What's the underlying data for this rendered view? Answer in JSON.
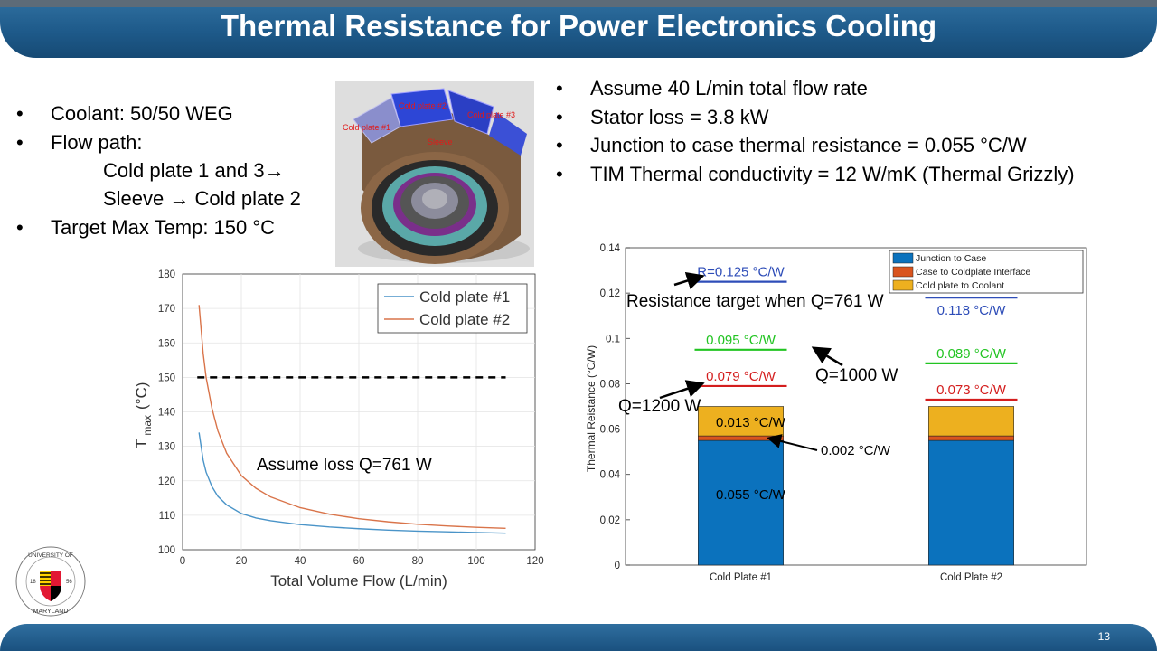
{
  "slide": {
    "title": "Thermal Resistance for Power Electronics Cooling",
    "number": "13"
  },
  "left_bullets": [
    "Coolant: 50/50 WEG",
    "Flow path:",
    "Target Max Temp: 150 °C"
  ],
  "flow_path_lines": [
    "Cold plate 1 and 3→",
    "Sleeve → Cold plate 2"
  ],
  "right_bullets": [
    "Assume 40 L/min total flow rate",
    "Stator loss = 3.8 kW",
    "Junction to case thermal resistance = 0.055 °C/W",
    "TIM Thermal conductivity = 12 W/mK (Thermal Grizzly)"
  ],
  "model_labels": [
    "Cold plate #1",
    "Cold plate #2",
    "Cold plate #3",
    "Sleeve"
  ],
  "logo": {
    "text_top": "UNIVERSITY OF",
    "text_bottom": "MARYLAND",
    "year_left": "18",
    "year_right": "56"
  },
  "chart_data": [
    {
      "type": "line",
      "xlabel": "Total Volume Flow (L/min)",
      "ylabel": "T max (°C)",
      "ylabel_main": "T",
      "ylabel_sub": "max",
      "ylabel_unit": "(°C)",
      "xlim": [
        0,
        120
      ],
      "ylim": [
        100,
        180
      ],
      "xticks": [
        0,
        20,
        40,
        60,
        80,
        100,
        120
      ],
      "yticks": [
        100,
        110,
        120,
        130,
        140,
        150,
        160,
        170,
        180
      ],
      "grid": true,
      "legend_position": "top-right",
      "annotation": "Assume loss Q=761 W",
      "reference_line": {
        "y": 150,
        "style": "dashed",
        "color": "#000000",
        "x_range": [
          5,
          110
        ]
      },
      "series": [
        {
          "name": "Cold plate #1",
          "color": "#4a94c8",
          "x": [
            5.6,
            7,
            8,
            10,
            12,
            15,
            20,
            25,
            30,
            40,
            50,
            60,
            70,
            80,
            90,
            100,
            110
          ],
          "y": [
            134,
            126,
            122.5,
            118.3,
            115.5,
            113,
            110.5,
            109.2,
            108.4,
            107.3,
            106.6,
            106.1,
            105.7,
            105.4,
            105.2,
            105,
            104.8
          ]
        },
        {
          "name": "Cold plate #2",
          "color": "#d9744a",
          "x": [
            5.6,
            7,
            8,
            10,
            12,
            15,
            20,
            25,
            30,
            40,
            50,
            60,
            70,
            80,
            90,
            100,
            110
          ],
          "y": [
            171,
            157,
            150,
            141,
            134.5,
            128,
            121.5,
            117.8,
            115.3,
            112.2,
            110.3,
            109,
            108.1,
            107.4,
            106.9,
            106.5,
            106.2
          ]
        }
      ]
    },
    {
      "type": "bar",
      "stacked": true,
      "ylabel": "Thermal Reistance (°C/W)",
      "categories": [
        "Cold Plate #1",
        "Cold Plate #2"
      ],
      "ylim": [
        0,
        0.14
      ],
      "yticks": [
        "0",
        "0.02",
        "0.04",
        "0.06",
        "0.08",
        "0.1",
        "0.12",
        "0.14"
      ],
      "legend_position": "top-right",
      "series": [
        {
          "name": "Junction to Case",
          "color": "#0b72bd",
          "values": [
            0.055,
            0.055
          ]
        },
        {
          "name": "Case to Coldplate Interface",
          "color": "#d9541e",
          "values": [
            0.002,
            0.002
          ]
        },
        {
          "name": "Cold plate to Coolant",
          "color": "#edb01f",
          "values": [
            0.013,
            0.013
          ]
        }
      ],
      "targets": [
        {
          "label": "R=0.125 °C/W",
          "category": 0,
          "value": 0.125,
          "color": "#2e4db8"
        },
        {
          "label": "0.118 °C/W",
          "category": 1,
          "value": 0.118,
          "color": "#2e4db8"
        },
        {
          "label": "0.095 °C/W",
          "category": 0,
          "value": 0.095,
          "color": "#22c422"
        },
        {
          "label": "0.089 °C/W",
          "category": 1,
          "value": 0.089,
          "color": "#22c422"
        },
        {
          "label": "0.079 °C/W",
          "category": 0,
          "value": 0.079,
          "color": "#d41e1e"
        },
        {
          "label": "0.073 °C/W",
          "category": 1,
          "value": 0.073,
          "color": "#d41e1e"
        }
      ],
      "annotations": {
        "target_title": "Resistance target when Q=761 W",
        "q1000": "Q=1000 W",
        "q1200": "Q=1200 W",
        "coolant_value": "0.013 °C/W",
        "interface_value": "0.002 °C/W",
        "junction_value": "0.055 °C/W"
      }
    }
  ]
}
